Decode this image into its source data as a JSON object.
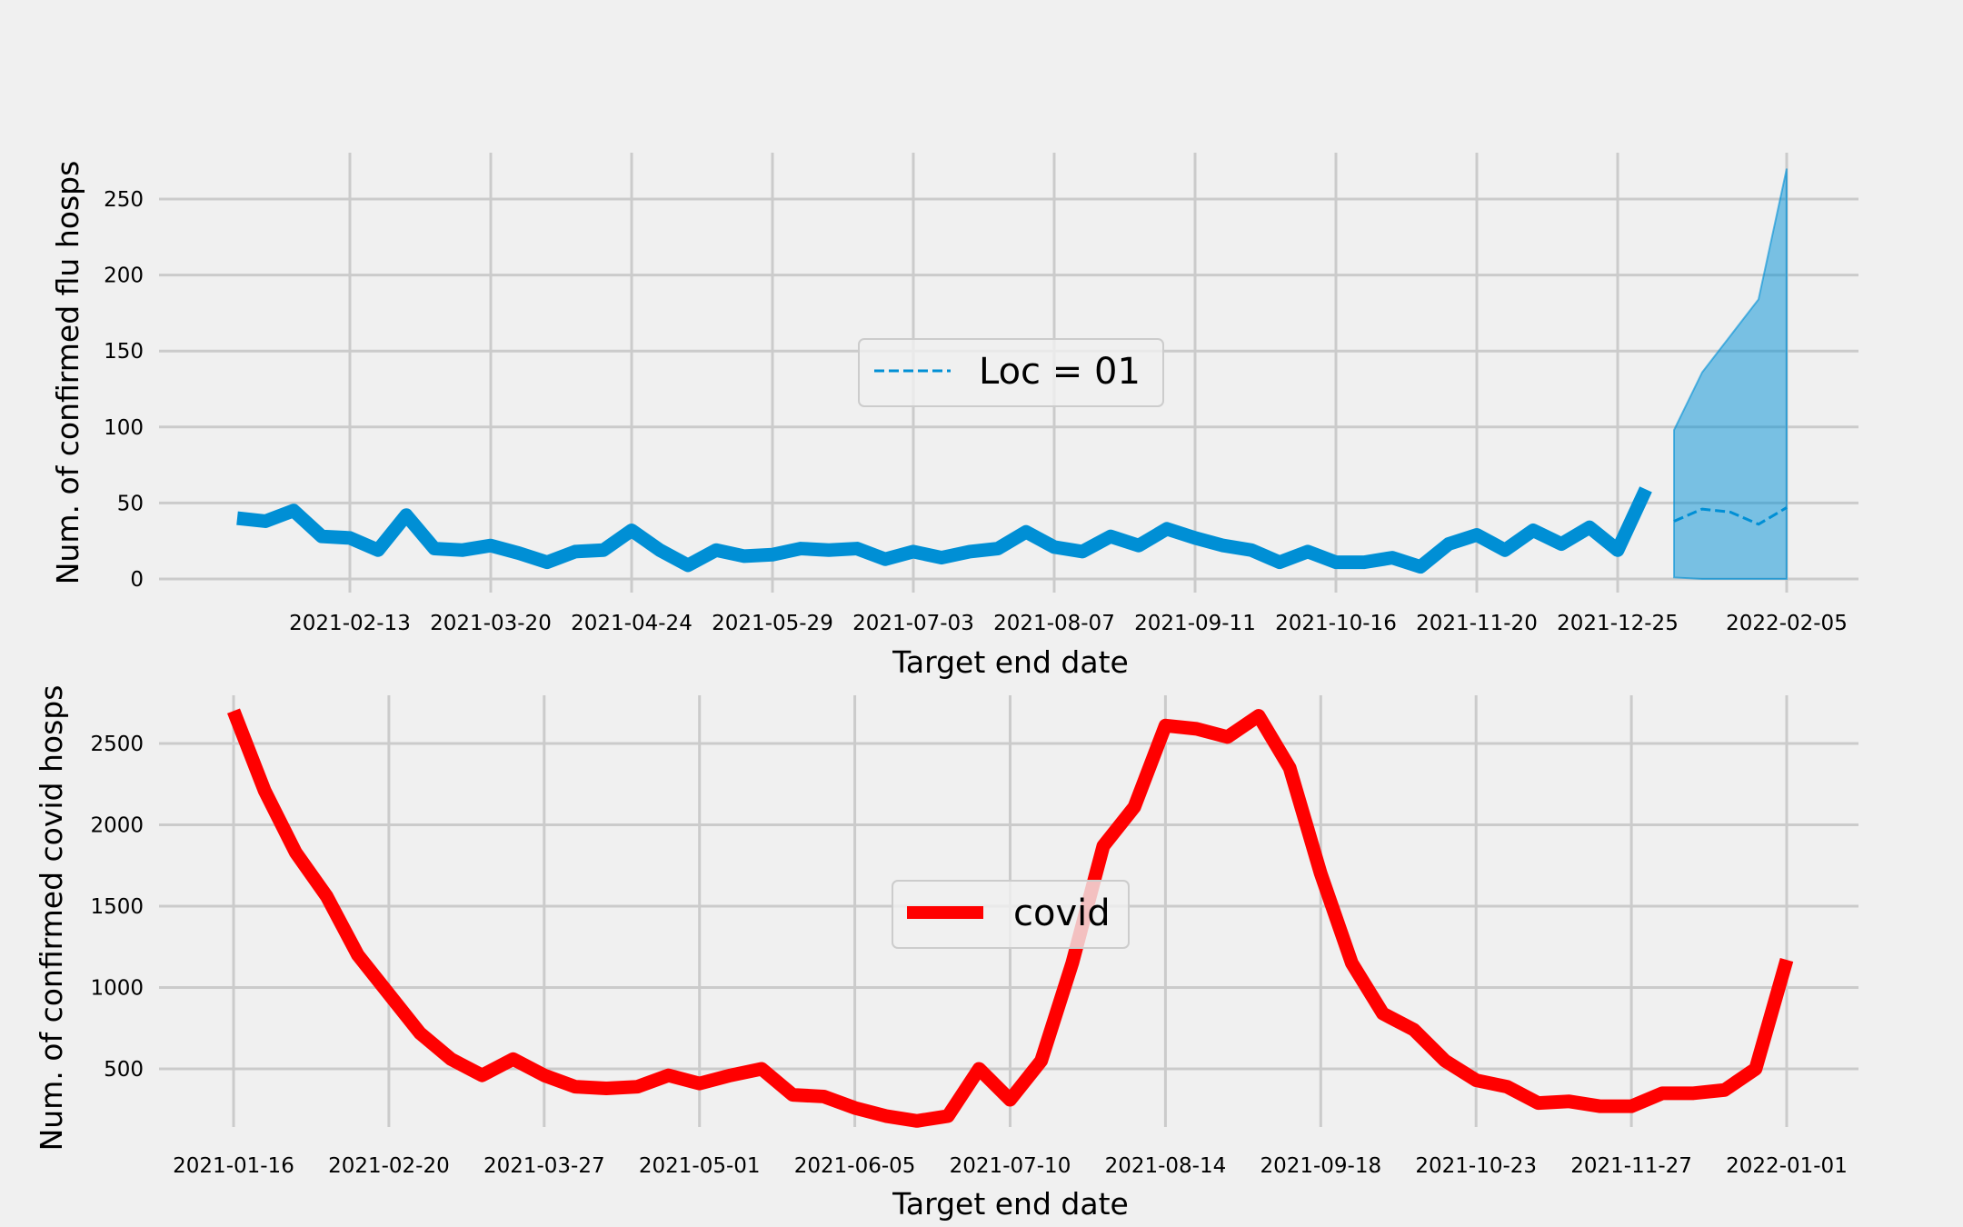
{
  "chart_data": [
    {
      "type": "line",
      "xlabel": "Target end date",
      "ylabel": "Num. of confirmed flu hosps",
      "ylim": [
        -5,
        280
      ],
      "y_ticks": [
        0,
        50,
        100,
        150,
        200,
        250
      ],
      "x_tick_labels": [
        "2021-02-13",
        "2021-03-20",
        "2021-04-24",
        "2021-05-29",
        "2021-07-03",
        "2021-08-07",
        "2021-09-11",
        "2021-10-16",
        "2021-11-20",
        "2021-12-25",
        "2022-02-05"
      ],
      "grid": true,
      "legend": {
        "placement": "center",
        "entries": [
          {
            "label": "Loc = 01",
            "style": "dashed",
            "color": "#008fd5"
          }
        ]
      },
      "series": [
        {
          "style": "solid",
          "color": "#008fd5",
          "x": [
            "2021-01-16",
            "2021-01-23",
            "2021-01-30",
            "2021-02-06",
            "2021-02-13",
            "2021-02-20",
            "2021-02-27",
            "2021-03-06",
            "2021-03-13",
            "2021-03-20",
            "2021-03-27",
            "2021-04-03",
            "2021-04-10",
            "2021-04-17",
            "2021-04-24",
            "2021-05-01",
            "2021-05-08",
            "2021-05-15",
            "2021-05-22",
            "2021-05-29",
            "2021-06-05",
            "2021-06-12",
            "2021-06-19",
            "2021-06-26",
            "2021-07-03",
            "2021-07-10",
            "2021-07-17",
            "2021-07-24",
            "2021-07-31",
            "2021-08-07",
            "2021-08-14",
            "2021-08-21",
            "2021-08-28",
            "2021-09-04",
            "2021-09-11",
            "2021-09-18",
            "2021-09-25",
            "2021-10-02",
            "2021-10-09",
            "2021-10-16",
            "2021-10-23",
            "2021-10-30",
            "2021-11-06",
            "2021-11-13",
            "2021-11-20",
            "2021-11-27",
            "2021-12-04",
            "2021-12-11",
            "2021-12-18",
            "2021-12-25",
            "2022-01-01"
          ],
          "values": [
            40,
            38,
            45,
            28,
            27,
            19,
            42,
            20,
            19,
            22,
            17,
            11,
            18,
            19,
            32,
            19,
            9,
            19,
            15,
            16,
            20,
            19,
            20,
            13,
            18,
            14,
            18,
            20,
            31,
            21,
            18,
            28,
            22,
            33,
            27,
            22,
            19,
            11,
            18,
            11,
            11,
            14,
            8,
            23,
            29,
            19,
            32,
            23,
            34,
            19,
            59
          ]
        },
        {
          "style": "dashed",
          "color": "#008fd5",
          "x": [
            "2022-01-08",
            "2022-01-15",
            "2022-01-22",
            "2022-01-29",
            "2022-02-05"
          ],
          "values": [
            38,
            46,
            44,
            36,
            47
          ]
        }
      ],
      "interval": {
        "color": "#008fd5",
        "x": [
          "2022-01-08",
          "2022-01-15",
          "2022-01-22",
          "2022-01-29",
          "2022-02-05"
        ],
        "lower": [
          1,
          0,
          0,
          0,
          0
        ],
        "upper": [
          98,
          136,
          160,
          184,
          270
        ]
      }
    },
    {
      "type": "line",
      "xlabel": "Target end date",
      "ylabel": "Num. of confirmed covid hosps",
      "ylim": [
        90,
        2820
      ],
      "y_ticks": [
        500,
        1000,
        1500,
        2000,
        2500
      ],
      "x_tick_labels": [
        "2021-01-16",
        "2021-02-20",
        "2021-03-27",
        "2021-05-01",
        "2021-06-05",
        "2021-07-10",
        "2021-08-14",
        "2021-09-18",
        "2021-10-23",
        "2021-11-27",
        "2022-01-01"
      ],
      "grid": true,
      "legend": {
        "placement": "center",
        "entries": [
          {
            "label": "covid",
            "style": "solid",
            "color": "#ff0000"
          }
        ]
      },
      "series": [
        {
          "name": "covid",
          "style": "solid",
          "color": "#ff0000",
          "x": [
            "2021-01-16",
            "2021-01-23",
            "2021-01-30",
            "2021-02-06",
            "2021-02-13",
            "2021-02-20",
            "2021-02-27",
            "2021-03-06",
            "2021-03-13",
            "2021-03-20",
            "2021-03-27",
            "2021-04-03",
            "2021-04-10",
            "2021-04-17",
            "2021-04-24",
            "2021-05-01",
            "2021-05-08",
            "2021-05-15",
            "2021-05-22",
            "2021-05-29",
            "2021-06-05",
            "2021-06-12",
            "2021-06-19",
            "2021-06-26",
            "2021-07-03",
            "2021-07-10",
            "2021-07-17",
            "2021-07-24",
            "2021-07-31",
            "2021-08-07",
            "2021-08-14",
            "2021-08-21",
            "2021-08-28",
            "2021-09-04",
            "2021-09-11",
            "2021-09-18",
            "2021-09-25",
            "2021-10-02",
            "2021-10-09",
            "2021-10-16",
            "2021-10-23",
            "2021-10-30",
            "2021-11-06",
            "2021-11-13",
            "2021-11-20",
            "2021-11-27",
            "2021-12-04",
            "2021-12-11",
            "2021-12-18",
            "2021-12-25",
            "2022-01-01"
          ],
          "values": [
            2700,
            2210,
            1830,
            1560,
            1200,
            960,
            720,
            560,
            460,
            560,
            460,
            390,
            380,
            390,
            460,
            410,
            460,
            500,
            340,
            330,
            260,
            210,
            180,
            210,
            500,
            310,
            550,
            1150,
            1870,
            2110,
            2610,
            2590,
            2540,
            2670,
            2350,
            1700,
            1150,
            840,
            740,
            550,
            430,
            390,
            290,
            300,
            270,
            270,
            350,
            350,
            370,
            500,
            1170
          ]
        }
      ]
    }
  ]
}
